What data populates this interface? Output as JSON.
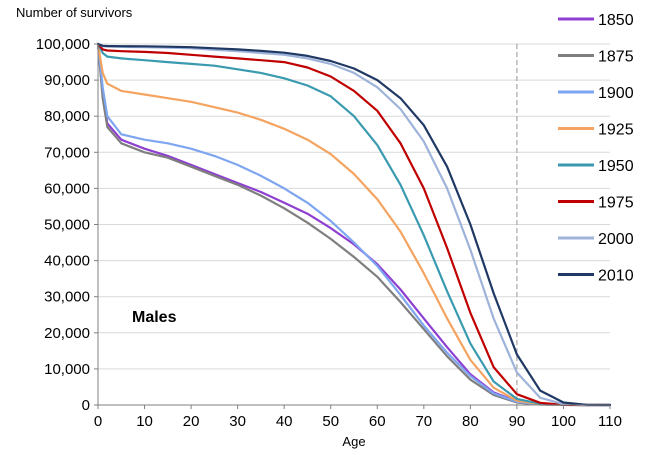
{
  "chart_data": {
    "type": "line",
    "ylabel": "Number of survivors",
    "xlabel": "Age",
    "annotation": "Males",
    "xlim": [
      0,
      110
    ],
    "ylim": [
      0,
      100000
    ],
    "x_ticks": [
      "0",
      "10",
      "20",
      "30",
      "40",
      "50",
      "60",
      "70",
      "80",
      "90",
      "100",
      "110"
    ],
    "y_ticks": [
      "0",
      "10,000",
      "20,000",
      "30,000",
      "40,000",
      "50,000",
      "60,000",
      "70,000",
      "80,000",
      "90,000",
      "100,000"
    ],
    "grid": "horizontal",
    "legend_position": "right",
    "reference_line_x": 90,
    "x": [
      0,
      1,
      2,
      5,
      10,
      15,
      20,
      25,
      30,
      35,
      40,
      45,
      50,
      55,
      60,
      65,
      70,
      75,
      80,
      85,
      90,
      95,
      100,
      105,
      110
    ],
    "series": [
      {
        "name": "1850",
        "color": "#8e3fd1",
        "values": [
          100000,
          86000,
          78000,
          73500,
          71000,
          69000,
          66500,
          64000,
          61500,
          59000,
          56000,
          53000,
          49000,
          44500,
          39000,
          32000,
          24000,
          16000,
          8500,
          3500,
          1000,
          200,
          30,
          0,
          0
        ]
      },
      {
        "name": "1875",
        "color": "#7f7f7f",
        "values": [
          100000,
          85000,
          77000,
          72500,
          70000,
          68500,
          66000,
          63500,
          61000,
          58000,
          54500,
          50500,
          46000,
          41000,
          35500,
          28500,
          21000,
          13500,
          7000,
          2800,
          700,
          150,
          20,
          0,
          0
        ]
      },
      {
        "name": "1900",
        "color": "#7ea6f0",
        "values": [
          100000,
          88000,
          80000,
          75000,
          73500,
          72500,
          71000,
          69000,
          66500,
          63500,
          60000,
          56000,
          51000,
          45000,
          38500,
          30500,
          22000,
          14500,
          8000,
          3200,
          900,
          180,
          25,
          0,
          0
        ]
      },
      {
        "name": "1925",
        "color": "#f4a460",
        "values": [
          100000,
          92000,
          89000,
          87000,
          86000,
          85000,
          84000,
          82500,
          81000,
          79000,
          76500,
          73500,
          69500,
          64000,
          57000,
          48000,
          36500,
          24000,
          12500,
          4800,
          1200,
          250,
          30,
          0,
          0
        ]
      },
      {
        "name": "1950",
        "color": "#3a9ab0",
        "values": [
          100000,
          97500,
          96500,
          96000,
          95500,
          95000,
          94500,
          94000,
          93000,
          92000,
          90500,
          88500,
          85500,
          80000,
          72000,
          61000,
          47000,
          31500,
          17000,
          6500,
          1700,
          350,
          40,
          0,
          0
        ]
      },
      {
        "name": "1975",
        "color": "#c00000",
        "values": [
          100000,
          98500,
          98200,
          98000,
          97800,
          97500,
          97000,
          96500,
          96000,
          95500,
          95000,
          93500,
          91000,
          87000,
          81500,
          72500,
          60000,
          43500,
          25500,
          10500,
          3000,
          600,
          60,
          0,
          0
        ]
      },
      {
        "name": "2000",
        "color": "#9eb3da",
        "values": [
          100000,
          99400,
          99300,
          99200,
          99100,
          99000,
          98800,
          98400,
          98000,
          97500,
          97000,
          96000,
          94500,
          92000,
          88000,
          82000,
          73000,
          60000,
          43000,
          24000,
          9000,
          2000,
          250,
          10,
          0
        ]
      },
      {
        "name": "2010",
        "color": "#1f3864",
        "values": [
          100000,
          99500,
          99450,
          99400,
          99350,
          99250,
          99100,
          98800,
          98500,
          98100,
          97600,
          96700,
          95300,
          93200,
          90000,
          85000,
          77500,
          66000,
          50000,
          31000,
          14000,
          4000,
          700,
          50,
          0
        ]
      }
    ]
  }
}
